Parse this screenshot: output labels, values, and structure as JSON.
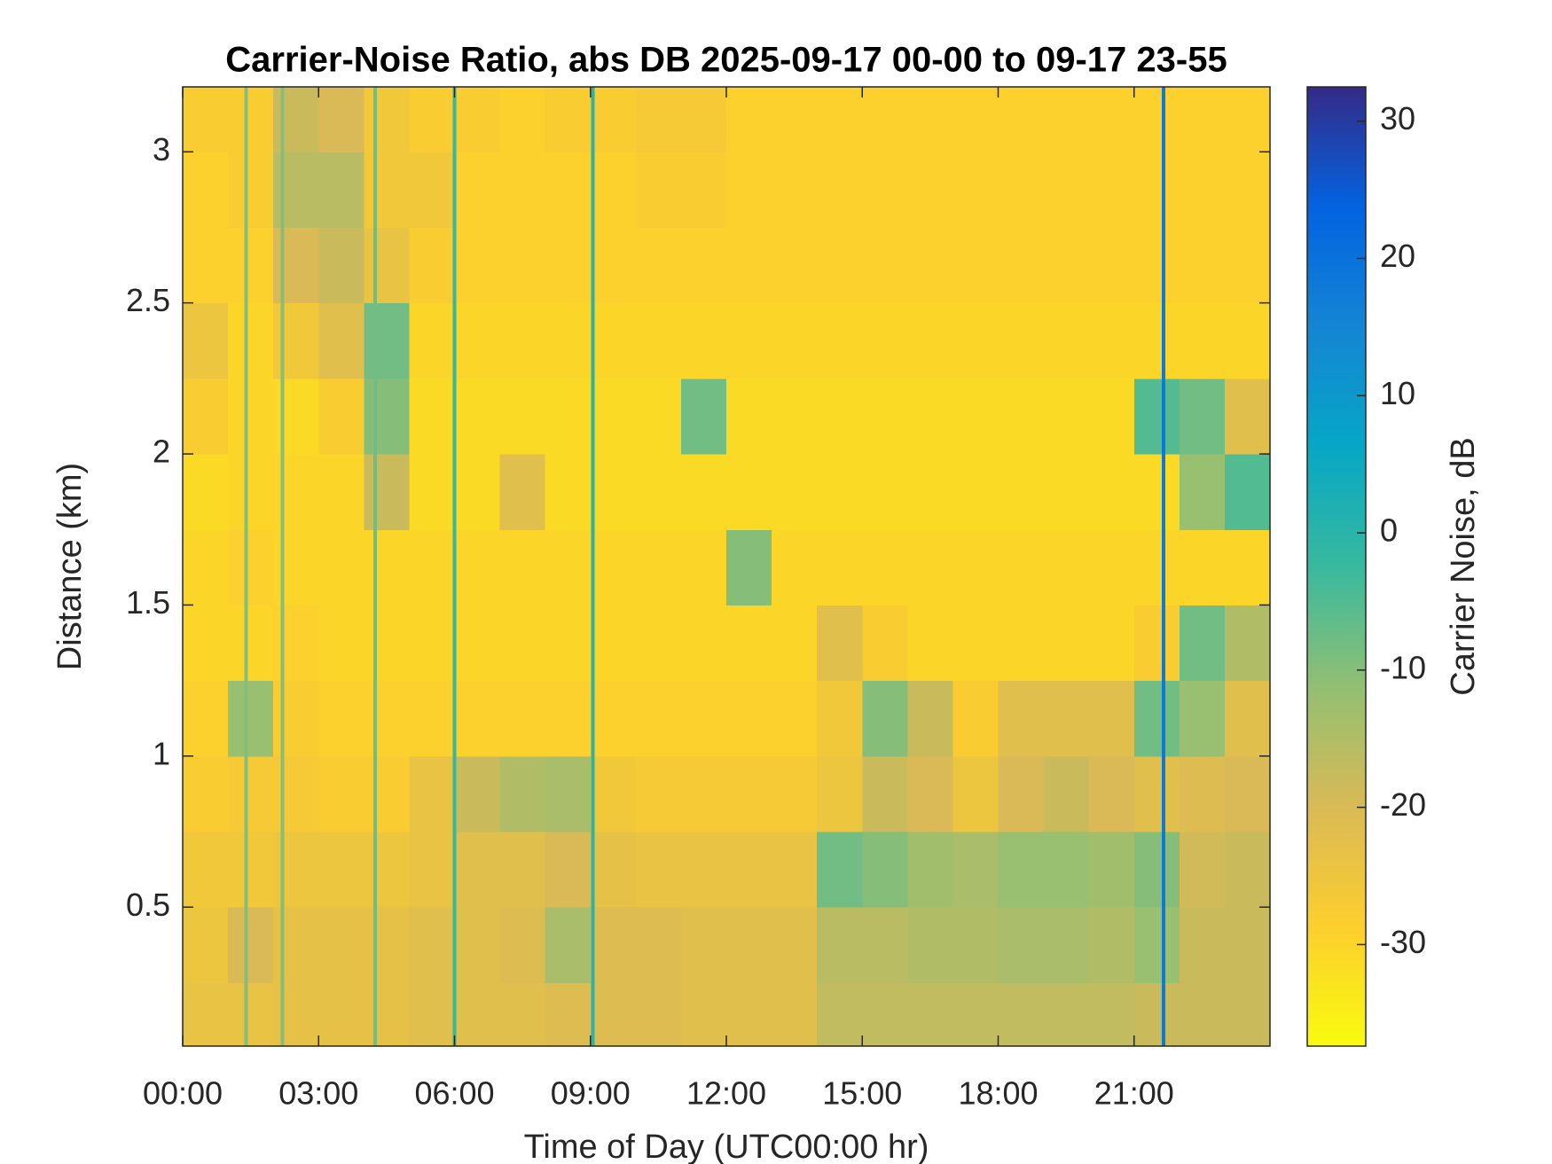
{
  "chart_data": {
    "type": "heatmap",
    "title": "Carrier-Noise Ratio, abs DB 2025-09-17 00-00 to 09-17 23-55",
    "x_label": "Time of Day (UTC00:00 hr)",
    "y_label": "Distance (km)",
    "colorbar_label": "Carrier Noise, dB",
    "xlim": [
      0,
      24
    ],
    "ylim": [
      0.04,
      3.215
    ],
    "clim": [
      -37.4,
      32.5
    ],
    "xticks": [
      {
        "value": 0,
        "label": "00:00"
      },
      {
        "value": 3,
        "label": "03:00"
      },
      {
        "value": 6,
        "label": "06:00"
      },
      {
        "value": 9,
        "label": "09:00"
      },
      {
        "value": 12,
        "label": "12:00"
      },
      {
        "value": 15,
        "label": "15:00"
      },
      {
        "value": 18,
        "label": "18:00"
      },
      {
        "value": 21,
        "label": "21:00"
      }
    ],
    "yticks": [
      0.5,
      1,
      1.5,
      2,
      2.5,
      3
    ],
    "cticks": [
      -30,
      -20,
      -10,
      0,
      10,
      20,
      30
    ],
    "colormap": [
      "#f9fb0e",
      "#fcce2e",
      "#d9ba56",
      "#92bf73",
      "#38b99e",
      "#06a7c6",
      "#1485d4",
      "#0363e1",
      "#352a87"
    ],
    "xbins": [
      0,
      1,
      2,
      3,
      4,
      5,
      6,
      7,
      8,
      9,
      10,
      11,
      12,
      13,
      14,
      15,
      16,
      17,
      18,
      19,
      20,
      21,
      22,
      23,
      24
    ],
    "ybins": [
      0.04,
      0.25,
      0.5,
      0.75,
      1,
      1.25,
      1.5,
      1.75,
      2,
      2.25,
      2.5,
      2.75,
      3,
      3.215
    ],
    "z": [
      [
        -24,
        -24,
        -23,
        -23,
        -23,
        -22,
        -22,
        -22,
        -21,
        -21,
        -21,
        -22,
        -22,
        -22,
        -17,
        -17,
        -17,
        -17,
        -17,
        -17,
        -17,
        -18,
        -18,
        -18
      ],
      [
        -25,
        -20,
        -23,
        -23,
        -23,
        -22,
        -22,
        -21,
        -14,
        -21,
        -21,
        -22,
        -22,
        -22,
        -16,
        -16,
        -15,
        -15,
        -14,
        -14,
        -15,
        -12,
        -18,
        -18
      ],
      [
        -26,
        -26,
        -25,
        -25,
        -25,
        -24,
        -22,
        -22,
        -20,
        -23,
        -24,
        -24,
        -24,
        -24,
        -8,
        -10,
        -13,
        -14,
        -12,
        -12,
        -13,
        -10,
        -19,
        -18
      ],
      [
        -28,
        -27,
        -27,
        -28,
        -28,
        -24,
        -18,
        -15,
        -14,
        -26,
        -27,
        -27,
        -27,
        -27,
        -25,
        -18,
        -20,
        -25,
        -20,
        -18,
        -20,
        -22,
        -21,
        -20
      ],
      [
        -29,
        -12,
        -28,
        -29,
        -29,
        -29,
        -29,
        -29,
        -29,
        -29,
        -29,
        -29,
        -29,
        -29,
        -26,
        -10,
        -18,
        -28,
        -22,
        -22,
        -22,
        -8,
        -12,
        -22
      ],
      [
        -30,
        -30,
        -29,
        -30,
        -30,
        -30,
        -30,
        -30,
        -30,
        -30,
        -30,
        -30,
        -30,
        -30,
        -22,
        -28,
        -30,
        -30,
        -30,
        -30,
        -30,
        -28,
        -8,
        -15
      ],
      [
        -30,
        -29,
        -30,
        -30,
        -30,
        -30,
        -30,
        -30,
        -30,
        -30,
        -30,
        -30,
        -10,
        -30,
        -30,
        -30,
        -30,
        -30,
        -30,
        -30,
        -30,
        -30,
        -30,
        -30
      ],
      [
        -31,
        -30,
        -30,
        -30,
        -18,
        -31,
        -31,
        -22,
        -31,
        -31,
        -31,
        -31,
        -31,
        -31,
        -31,
        -31,
        -31,
        -31,
        -31,
        -31,
        -31,
        -31,
        -12,
        -5
      ],
      [
        -28,
        -30,
        -31,
        -28,
        -10,
        -31,
        -31,
        -31,
        -31,
        -31,
        -31,
        -8,
        -31,
        -31,
        -31,
        -31,
        -31,
        -31,
        -31,
        -31,
        -31,
        -5,
        -8,
        -22
      ],
      [
        -25,
        -30,
        -26,
        -22,
        -8,
        -30,
        -30,
        -30,
        -30,
        -30,
        -30,
        -30,
        -30,
        -30,
        -30,
        -30,
        -30,
        -30,
        -30,
        -30,
        -30,
        -30,
        -30,
        -30
      ],
      [
        -29,
        -29,
        -20,
        -18,
        -24,
        -28,
        -29,
        -29,
        -29,
        -29,
        -29,
        -29,
        -29,
        -29,
        -29,
        -29,
        -29,
        -29,
        -29,
        -29,
        -29,
        -29,
        -29,
        -29
      ],
      [
        -29,
        -28,
        -16,
        -16,
        -26,
        -26,
        -29,
        -29,
        -29,
        -29,
        -28,
        -28,
        -29,
        -29,
        -29,
        -29,
        -29,
        -29,
        -29,
        -29,
        -29,
        -29,
        -29,
        -29
      ],
      [
        -28,
        -28,
        -18,
        -20,
        -26,
        -28,
        -28,
        -29,
        -28,
        -28,
        -27,
        -27,
        -29,
        -29,
        -29,
        -29,
        -29,
        -29,
        -29,
        -29,
        -29,
        -29,
        -29,
        -29
      ]
    ],
    "stripes": {
      "x": [
        1.4,
        2.2,
        4.25,
        6.0,
        9.05,
        21.65
      ],
      "values": [
        -10,
        -10,
        -8,
        -2,
        0,
        18
      ]
    }
  }
}
